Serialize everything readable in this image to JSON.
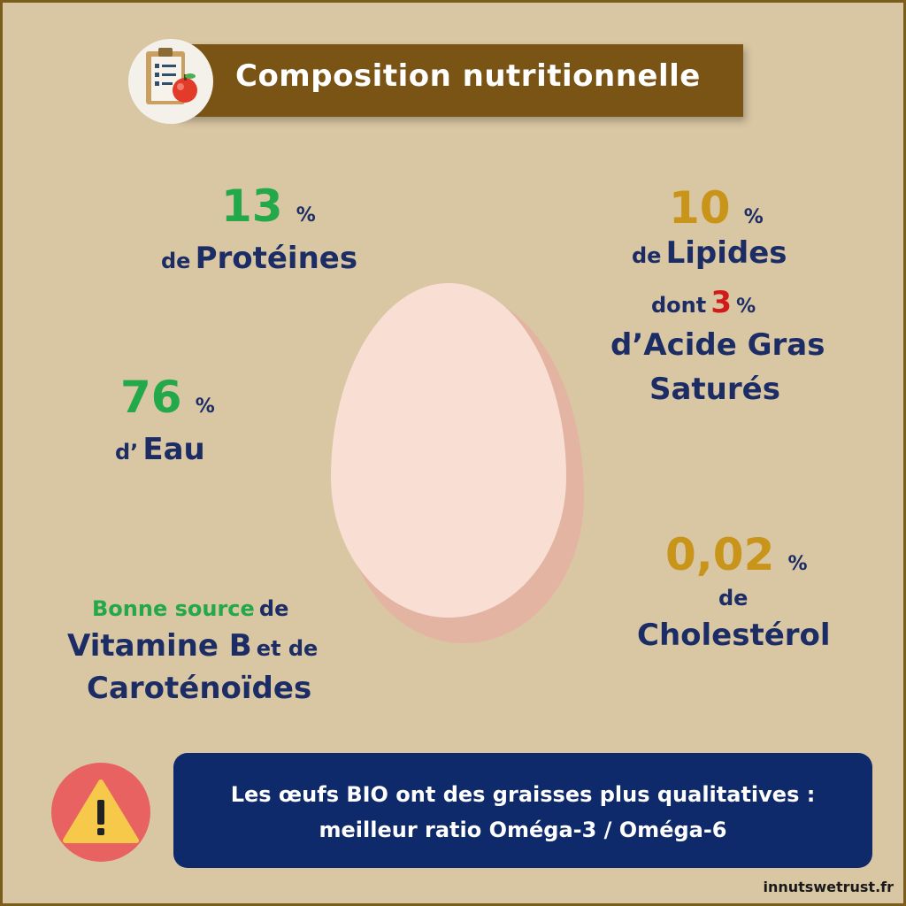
{
  "header": {
    "title": "Composition nutritionnelle",
    "icon": "checklist-apple-icon"
  },
  "proteins": {
    "value": "13",
    "unit": "%",
    "prefix": "de",
    "label": "Protéines"
  },
  "water": {
    "value": "76",
    "unit": "%",
    "prefix": "d’",
    "label": "Eau"
  },
  "lipids": {
    "value": "10",
    "unit": "%",
    "prefix": "de",
    "label": "Lipides",
    "sat_prefix": "dont",
    "sat_value": "3",
    "sat_unit": "%",
    "sat_label_line1": "d’Acide Gras",
    "sat_label_line2": "Saturés"
  },
  "cholesterol": {
    "value": "0,02",
    "unit": "%",
    "prefix": "de",
    "label": "Cholestérol"
  },
  "source": {
    "highlight": "Bonne source",
    "after": "de",
    "line2_main": "Vitamine B",
    "line2_small": "et de",
    "line3": "Caroténoïdes"
  },
  "notice": {
    "icon": "warning-icon",
    "line1": "Les œufs BIO ont des graisses plus qualitatives :",
    "line2": "meilleur ratio Oméga-3 / Oméga-6"
  },
  "footer": "innutswetrust.fr",
  "colors": {
    "background": "#d9c6a3",
    "header": "#7a5414",
    "dark_text": "#1c2d66",
    "green": "#23a84a",
    "gold": "#c8951a",
    "red": "#d11a1a",
    "notice_bg": "#0f2a6b",
    "egg": "#f9ded4"
  }
}
